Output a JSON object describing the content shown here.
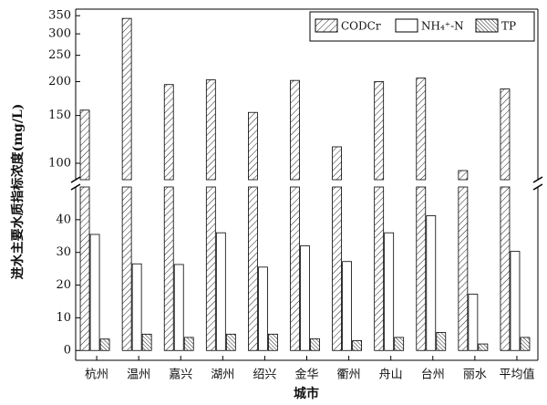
{
  "chart_data": {
    "type": "bar",
    "y_label": "进水主要水质指标浓度(mg/L)",
    "x_label": "城市",
    "categories": [
      "杭州",
      "温州",
      "嘉兴",
      "湖州",
      "绍兴",
      "金华",
      "衢州",
      "舟山",
      "台州",
      "丽水",
      "平均值"
    ],
    "series": [
      {
        "name": "CODCr",
        "color": "#000000",
        "pattern": "diagonal",
        "values": [
          157,
          342,
          195,
          203,
          154,
          202,
          115,
          200,
          206,
          94,
          188
        ]
      },
      {
        "name": "NH₄⁺-N",
        "color": "#000000",
        "pattern": "none",
        "values": [
          35.5,
          26.5,
          26.3,
          36,
          25.5,
          32,
          27.2,
          36,
          41.2,
          17.2,
          30.3
        ]
      },
      {
        "name": "TP",
        "color": "#000000",
        "pattern": "dense-diagonal",
        "values": [
          3.5,
          5,
          4,
          5,
          5,
          3.6,
          3,
          4,
          5.5,
          2,
          4
        ]
      }
    ],
    "y_segments": [
      {
        "ylim": [
          -3,
          50
        ],
        "yticks": [
          0,
          10,
          20,
          30,
          40
        ]
      },
      {
        "ylim": [
          87,
          370
        ],
        "yticks": [
          100,
          150,
          200,
          250,
          300,
          350
        ],
        "log_scale": true
      }
    ],
    "legend": "upper right"
  }
}
